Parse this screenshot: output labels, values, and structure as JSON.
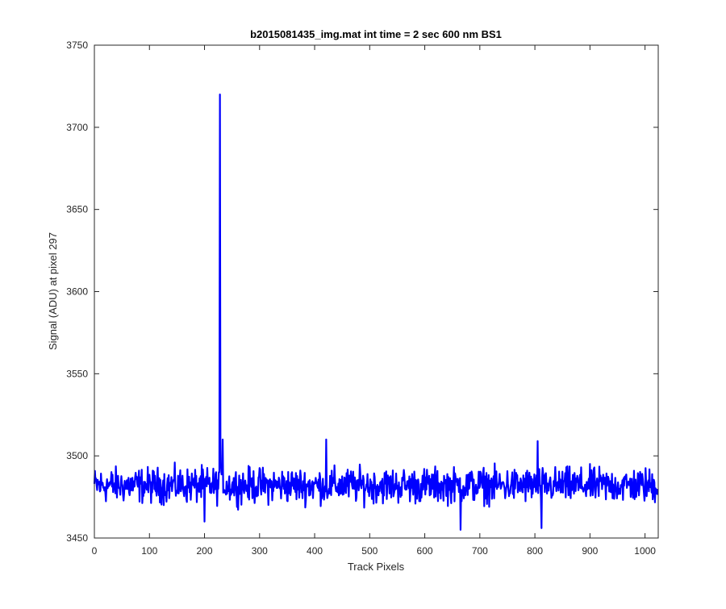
{
  "chart_data": {
    "type": "line",
    "title": "b2015081435_img.mat int time = 2 sec  600 nm BS1",
    "xlabel": "Track Pixels",
    "ylabel": "Signal (ADU) at pixel 297",
    "xlim": [
      0,
      1024
    ],
    "ylim": [
      3450,
      3750
    ],
    "xticks": [
      0,
      100,
      200,
      300,
      400,
      500,
      600,
      700,
      800,
      900,
      1000
    ],
    "yticks": [
      3450,
      3500,
      3550,
      3600,
      3650,
      3700,
      3750
    ],
    "grid": false,
    "legend": "none",
    "series_color": "#0000ff",
    "series": [
      {
        "baseline": 3482,
        "noise_amplitude": 12,
        "n_points": 1024,
        "peaks": [
          {
            "x": 228,
            "y": 3720
          },
          {
            "x": 233,
            "y": 3510
          },
          {
            "x": 421,
            "y": 3510
          },
          {
            "x": 665,
            "y": 3455
          },
          {
            "x": 812,
            "y": 3456
          },
          {
            "x": 200,
            "y": 3460
          },
          {
            "x": 805,
            "y": 3509
          }
        ]
      }
    ]
  }
}
